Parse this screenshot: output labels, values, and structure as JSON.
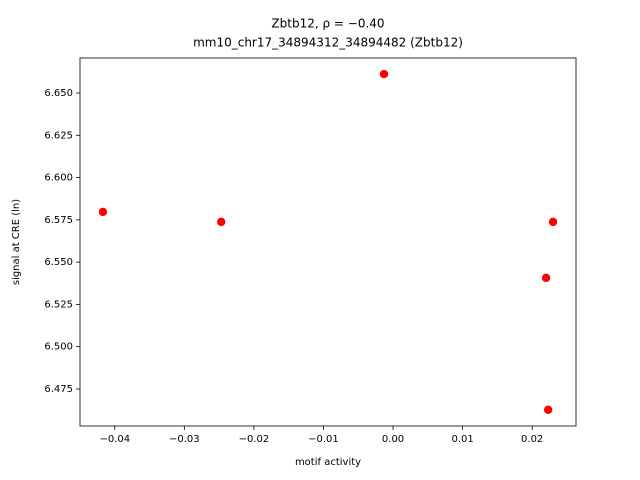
{
  "chart_data": {
    "type": "scatter",
    "title": "Zbtb12, ρ = −0.40",
    "subtitle": "mm10_chr17_34894312_34894482 (Zbtb12)",
    "x_label": "motif activity",
    "y_label": "signal at CRE (ln)",
    "color": "#ff0000",
    "x": [
      -0.0417,
      -0.0247,
      -0.0013,
      0.023,
      0.022,
      0.0223
    ],
    "values": [
      6.5797,
      6.5738,
      6.6612,
      6.5738,
      6.5407,
      6.4627
    ],
    "xlim": [
      -0.045,
      0.0263
    ],
    "ylim": [
      6.4531,
      6.6707
    ],
    "xticks": [
      {
        "value": -0.04,
        "label": "−0.04"
      },
      {
        "value": -0.03,
        "label": "−0.03"
      },
      {
        "value": -0.02,
        "label": "−0.02"
      },
      {
        "value": -0.01,
        "label": "−0.01"
      },
      {
        "value": 0,
        "label": "0.00"
      },
      0.01,
      0.02
    ],
    "yticks": [
      6.475,
      {
        "value": 6.5,
        "label": "6.500"
      },
      6.525,
      {
        "value": 6.55,
        "label": "6.550"
      },
      6.575,
      {
        "value": 6.6,
        "label": "6.600"
      },
      6.625,
      {
        "value": 6.65,
        "label": "6.650"
      }
    ],
    "grid": false
  }
}
